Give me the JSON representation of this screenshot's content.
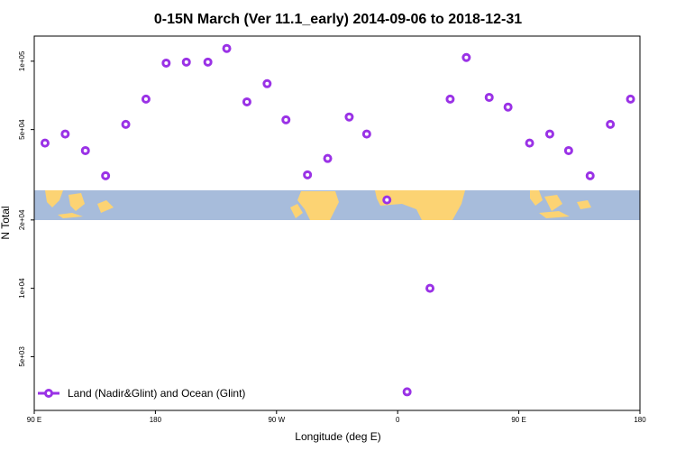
{
  "chart_data": {
    "type": "scatter",
    "title": "0-15N March (Ver 11.1_early)   2014-09-06 to 2018-12-31",
    "x_label": "Longitude (deg E)",
    "y_label": "N Total",
    "xlim": [
      90,
      540
    ],
    "xticks": [
      {
        "value": 90,
        "label": "90 E"
      },
      180,
      {
        "value": 270,
        "label": "90 W"
      },
      {
        "value": 360,
        "label": "0"
      },
      {
        "value": 450,
        "label": "90 E"
      },
      {
        "value": 540,
        "label": "180"
      }
    ],
    "ylim": [
      2900,
      129000
    ],
    "yticks": [
      {
        "value": 5000,
        "label": "5e+03"
      },
      {
        "value": 10000,
        "label": "1e+04"
      },
      {
        "value": 20000,
        "label": "2e+04"
      },
      {
        "value": 50000,
        "label": "5e+04"
      },
      {
        "value": 100000,
        "label": "1e+05"
      }
    ],
    "y_log": true,
    "legend_position": "bottom-left",
    "series": [
      {
        "name": "Land (Nadir&Glint) and Ocean (Glint)",
        "color": "#9a32e6",
        "x": [
          98,
          113,
          128,
          143,
          158,
          173,
          188,
          203,
          219,
          233,
          248,
          263,
          277,
          293,
          308,
          324,
          337,
          352,
          367,
          384,
          399,
          411,
          428,
          442,
          458,
          473,
          487,
          503,
          518,
          533
        ],
        "values": [
          43600,
          47800,
          40400,
          31300,
          52700,
          68100,
          98100,
          99100,
          99100,
          113800,
          66200,
          79600,
          55200,
          31600,
          37300,
          56800,
          47800,
          24500,
          3500,
          10000,
          68100,
          103800,
          69300,
          62800,
          43600,
          47800,
          40400,
          31300,
          52700,
          68100
        ]
      }
    ]
  }
}
